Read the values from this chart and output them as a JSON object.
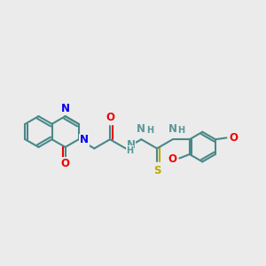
{
  "bg": "#ebebeb",
  "bc": "#4a8888",
  "NC": "#0000ee",
  "OC": "#ee0000",
  "SC": "#bbaa00",
  "HC": "#5a9898",
  "lw": 1.5,
  "fs": 8.5,
  "fs_small": 7.0,
  "R": 0.58,
  "xlim": [
    0,
    10
  ],
  "ylim": [
    2.5,
    7.5
  ]
}
